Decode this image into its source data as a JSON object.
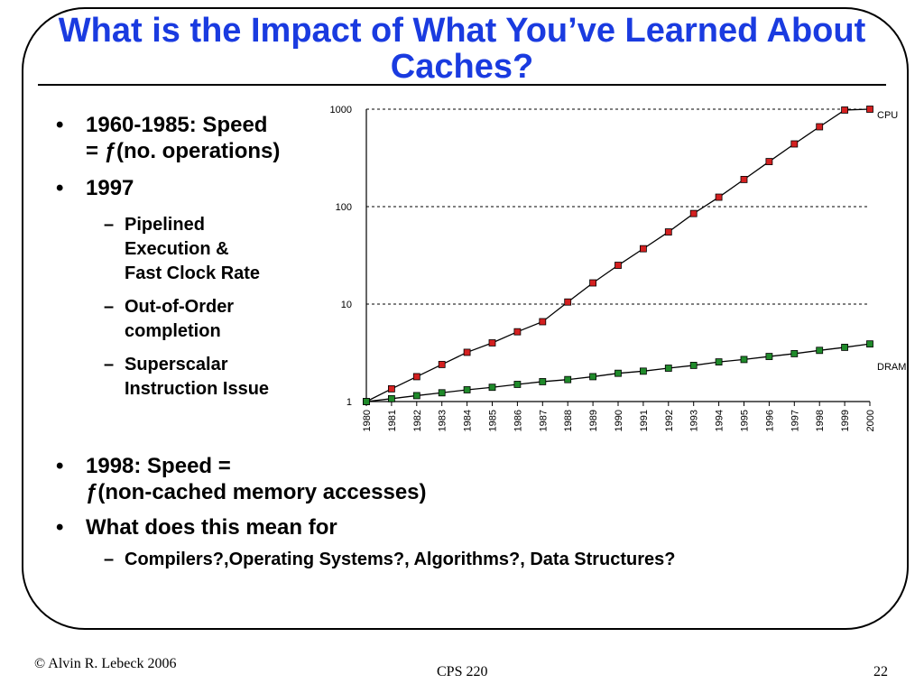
{
  "slide": {
    "title": "What is the Impact of What You’ve Learned About Caches?",
    "bullets_top": [
      {
        "text": "1960-1985: Speed",
        "text2": "= ƒ(no. operations)"
      },
      {
        "text": "1997"
      }
    ],
    "sub_bullets": [
      {
        "line1": "Pipelined",
        "line2": "Execution &",
        "line3": "Fast Clock Rate"
      },
      {
        "line1": "Out-of-Order",
        "line2": "completion"
      },
      {
        "line1": "Superscalar",
        "line2": "Instruction Issue"
      }
    ],
    "bullets_bottom": [
      {
        "text": "1998: Speed =",
        "text2": "ƒ(non-cached memory accesses)"
      },
      {
        "text": "What does this mean for"
      }
    ],
    "sub_bullet_bottom": "Compilers?,Operating Systems?, Algorithms?, Data Structures?"
  },
  "footer": {
    "copyright": "© Alvin R. Lebeck 2006",
    "course": "CPS 220",
    "page": "22"
  },
  "chart_data": {
    "type": "line",
    "yscale": "log",
    "ylim": [
      1,
      1000
    ],
    "ytick_labels": [
      "1000",
      "100",
      "10",
      "1"
    ],
    "ytick_values": [
      1000,
      100,
      10,
      1
    ],
    "categories": [
      "1980",
      "1981",
      "1982",
      "1983",
      "1984",
      "1985",
      "1986",
      "1987",
      "1988",
      "1989",
      "1990",
      "1991",
      "1992",
      "1993",
      "1994",
      "1995",
      "1996",
      "1997",
      "1998",
      "1999",
      "2000"
    ],
    "grid": "horizontal-dashed",
    "series": [
      {
        "name": "CPU",
        "color": "#d42020",
        "values": [
          1,
          1.35,
          1.8,
          2.4,
          3.2,
          4.0,
          5.2,
          6.6,
          10.5,
          16.5,
          25,
          37,
          55,
          85,
          125,
          190,
          290,
          440,
          660,
          980,
          1000
        ]
      },
      {
        "name": "DRAM",
        "color": "#1f8a2a",
        "values": [
          1,
          1.07,
          1.15,
          1.23,
          1.32,
          1.4,
          1.5,
          1.6,
          1.68,
          1.8,
          1.95,
          2.05,
          2.2,
          2.35,
          2.55,
          2.7,
          2.9,
          3.1,
          3.35,
          3.6,
          3.9
        ]
      }
    ]
  }
}
